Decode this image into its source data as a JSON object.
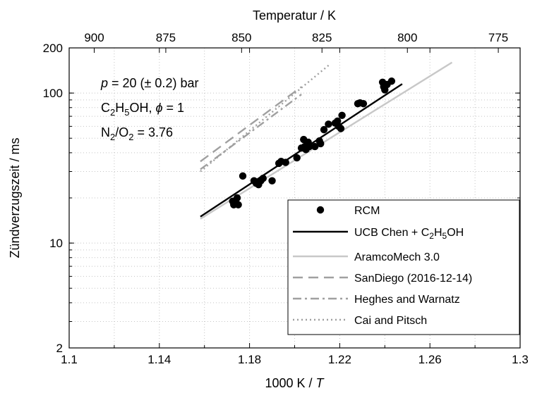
{
  "chart_data": {
    "type": "scatter",
    "title": "",
    "xlabel": "1000 K / T",
    "xlabel_main": "1000 K / ",
    "xlabel_italic": "T",
    "top_xlabel": "Temperatur / K",
    "ylabel": "Zündverzugszeit / ms",
    "xlim": [
      1.1,
      1.3
    ],
    "ylim": [
      2,
      200
    ],
    "yscale": "log",
    "grid": true,
    "legend_position": "bottom-right",
    "x_ticks": [
      1.1,
      1.14,
      1.18,
      1.22,
      1.26,
      1.3
    ],
    "x_tick_labels": [
      "1.1",
      "1.14",
      "1.18",
      "1.22",
      "1.26",
      "1.3"
    ],
    "y_ticks": [
      2,
      10,
      100,
      200
    ],
    "y_tick_labels": [
      "2",
      "10",
      "100",
      "200"
    ],
    "top_ticks": [
      900,
      875,
      850,
      825,
      800,
      775
    ],
    "top_tick_labels": [
      "900",
      "875",
      "850",
      "825",
      "800",
      "775"
    ],
    "annotations": {
      "line1_italic": "p",
      "line1_rest": " = 20 (± 0.2) bar",
      "line2_a": "C",
      "line2_sub1": "2",
      "line2_b": "H",
      "line2_sub2": "5",
      "line2_c": "OH, ",
      "line2_phi": "ϕ",
      "line2_d": " = 1",
      "line3_a": "N",
      "line3_sub1": "2",
      "line3_b": "/O",
      "line3_sub2": "2",
      "line3_c": " = 3.76"
    },
    "series": [
      {
        "name": "RCM",
        "kind": "markers",
        "color": "#000000",
        "points": [
          [
            1.1725,
            19.0
          ],
          [
            1.173,
            18.0
          ],
          [
            1.174,
            18.5
          ],
          [
            1.1745,
            20.0
          ],
          [
            1.175,
            18.0
          ],
          [
            1.177,
            28.0
          ],
          [
            1.182,
            26.0
          ],
          [
            1.183,
            25.0
          ],
          [
            1.184,
            24.5
          ],
          [
            1.185,
            26.0
          ],
          [
            1.186,
            27.0
          ],
          [
            1.19,
            26.0
          ],
          [
            1.193,
            34.0
          ],
          [
            1.194,
            35.0
          ],
          [
            1.196,
            34.5
          ],
          [
            1.201,
            37.0
          ],
          [
            1.203,
            43.0
          ],
          [
            1.204,
            49.0
          ],
          [
            1.2045,
            44.0
          ],
          [
            1.205,
            42.0
          ],
          [
            1.206,
            47.0
          ],
          [
            1.2065,
            44.0
          ],
          [
            1.209,
            44.0
          ],
          [
            1.211,
            48.0
          ],
          [
            1.2115,
            46.0
          ],
          [
            1.213,
            57.0
          ],
          [
            1.215,
            62.0
          ],
          [
            1.218,
            63.0
          ],
          [
            1.219,
            65.0
          ],
          [
            1.2195,
            60.0
          ],
          [
            1.2205,
            58.0
          ],
          [
            1.221,
            71.0
          ],
          [
            1.228,
            85.0
          ],
          [
            1.229,
            86.0
          ],
          [
            1.2305,
            85.0
          ],
          [
            1.239,
            118.0
          ],
          [
            1.2395,
            110.0
          ],
          [
            1.24,
            105.0
          ],
          [
            1.241,
            114.0
          ],
          [
            1.243,
            120.0
          ]
        ]
      },
      {
        "name": "UCB Chen + C2H5OH",
        "name_a": "UCB Chen + C",
        "name_sub1": "2",
        "name_b": "H",
        "name_sub2": "5",
        "name_c": "OH",
        "kind": "line",
        "color": "#000000",
        "dash": "",
        "points": [
          [
            1.1582,
            15.0
          ],
          [
            1.2477,
            115.0
          ]
        ]
      },
      {
        "name": "AramcoMech 3.0",
        "kind": "line",
        "color": "#c8c8c8",
        "dash": "",
        "points": [
          [
            1.1582,
            14.5
          ],
          [
            1.2698,
            160.0
          ]
        ]
      },
      {
        "name": "SanDiego (2016-12-14)",
        "kind": "line",
        "color": "#a0a0a0",
        "dash": "14,8",
        "points": [
          [
            1.1582,
            35.0
          ],
          [
            1.203,
            110.0
          ]
        ]
      },
      {
        "name": "Heghes and Warnatz",
        "kind": "line",
        "color": "#a0a0a0",
        "dash": "12,5,3,5",
        "points": [
          [
            1.1582,
            31.0
          ],
          [
            1.203,
            98.0
          ]
        ]
      },
      {
        "name": "Cai and Pitsch",
        "kind": "line",
        "color": "#a0a0a0",
        "dash": "2,4",
        "points": [
          [
            1.1582,
            30.0
          ],
          [
            1.2155,
            155.0
          ]
        ]
      }
    ]
  }
}
